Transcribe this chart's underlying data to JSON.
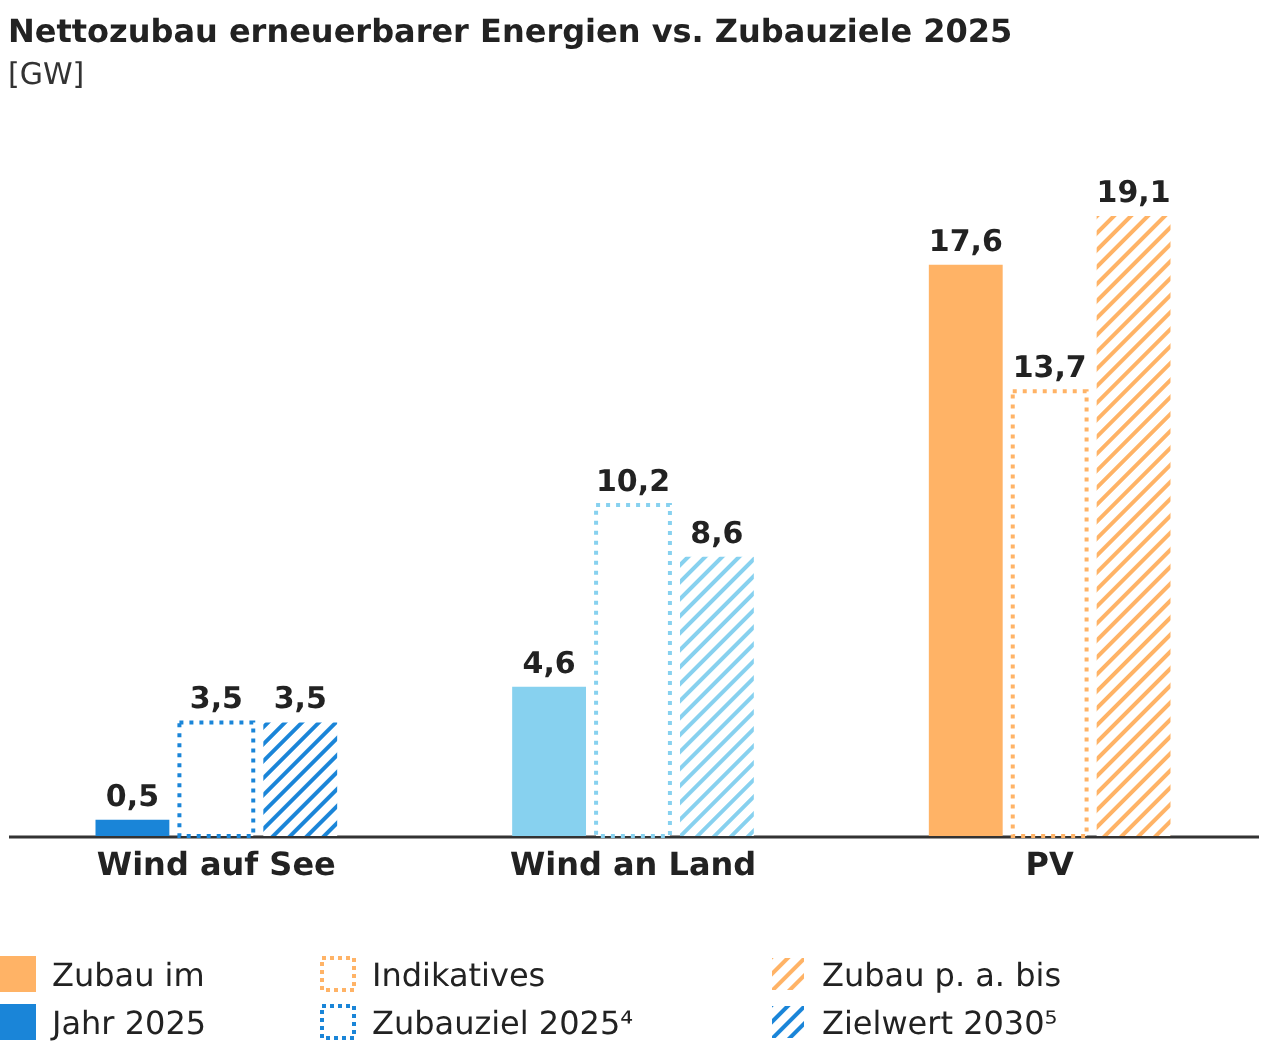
{
  "chart_data": {
    "type": "bar",
    "title": "Nettozubau erneuerbarer Energien vs. Zubauziele 2025",
    "subtitle": "[GW]",
    "categories": [
      "Wind auf See",
      "Wind an Land",
      "PV"
    ],
    "series": [
      {
        "name": "Zubau im Jahr 2025",
        "colors": [
          "#1a85d8",
          "#87d1ef",
          "#ffb366"
        ],
        "values": [
          0.5,
          4.6,
          17.6
        ],
        "value_labels": [
          "0,5",
          "4,6",
          "17,6"
        ]
      },
      {
        "name": "Indikatives Zubauziel 2025⁴",
        "colors": [
          "#1a85d8",
          "#87d1ef",
          "#ffb366"
        ],
        "values": [
          3.5,
          10.2,
          13.7
        ],
        "value_labels": [
          "3,5",
          "10,2",
          "13,7"
        ],
        "line_style": "dotted"
      },
      {
        "name": "Zubau p. a. bis Zielwert 2030⁵",
        "colors": [
          "#1a85d8",
          "#87d1ef",
          "#ffb366"
        ],
        "values": [
          3.5,
          8.6,
          19.1
        ],
        "value_labels": [
          "3,5",
          "8,6",
          "19,1"
        ]
      }
    ],
    "legend": "bottom"
  }
}
